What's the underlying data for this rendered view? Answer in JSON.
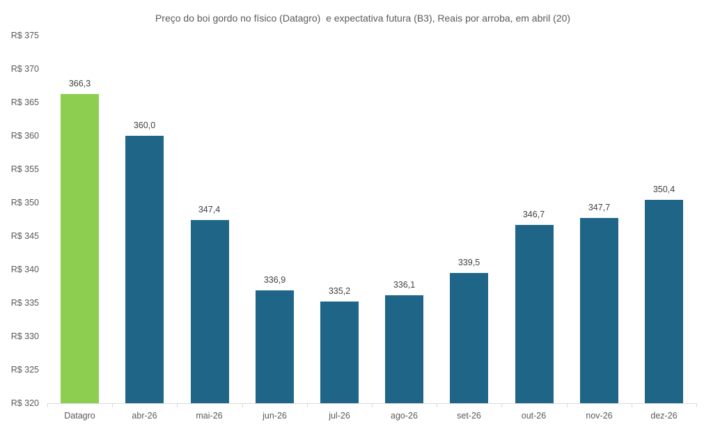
{
  "chart_data": {
    "type": "bar",
    "title": "Preço do boi gordo no físico (Datagro)  e expectativa futura (B3), Reais por arroba, em abril (20)",
    "categories": [
      "Datagro",
      "abr-26",
      "mai-26",
      "jun-26",
      "jul-26",
      "ago-26",
      "set-26",
      "out-26",
      "nov-26",
      "dez-26"
    ],
    "values": [
      366.3,
      360.0,
      347.4,
      336.9,
      335.2,
      336.1,
      339.5,
      346.7,
      347.7,
      350.4
    ],
    "value_labels": [
      "366,3",
      "360,0",
      "347,4",
      "336,9",
      "335,2",
      "336,1",
      "339,5",
      "346,7",
      "347,7",
      "350,4"
    ],
    "highlight_index": 0,
    "y_ticks": [
      375,
      370,
      365,
      360,
      355,
      350,
      345,
      340,
      335,
      330,
      325,
      320
    ],
    "y_tick_labels": [
      "R$ 375",
      "R$ 370",
      "R$ 365",
      "R$ 360",
      "R$ 355",
      "R$ 350",
      "R$ 345",
      "R$ 340",
      "R$ 335",
      "R$ 330",
      "R$ 325",
      "R$ 320"
    ],
    "ylim": [
      320,
      375
    ],
    "xlabel": "",
    "ylabel": "",
    "grid": false,
    "legend": "none",
    "colors": {
      "highlight_bar": "#8dcd4f",
      "bar": "#1f6587",
      "axis_line": "#d9d9d9",
      "axis_text": "#595959",
      "value_label_text": "#404040",
      "background": "#ffffff"
    }
  }
}
